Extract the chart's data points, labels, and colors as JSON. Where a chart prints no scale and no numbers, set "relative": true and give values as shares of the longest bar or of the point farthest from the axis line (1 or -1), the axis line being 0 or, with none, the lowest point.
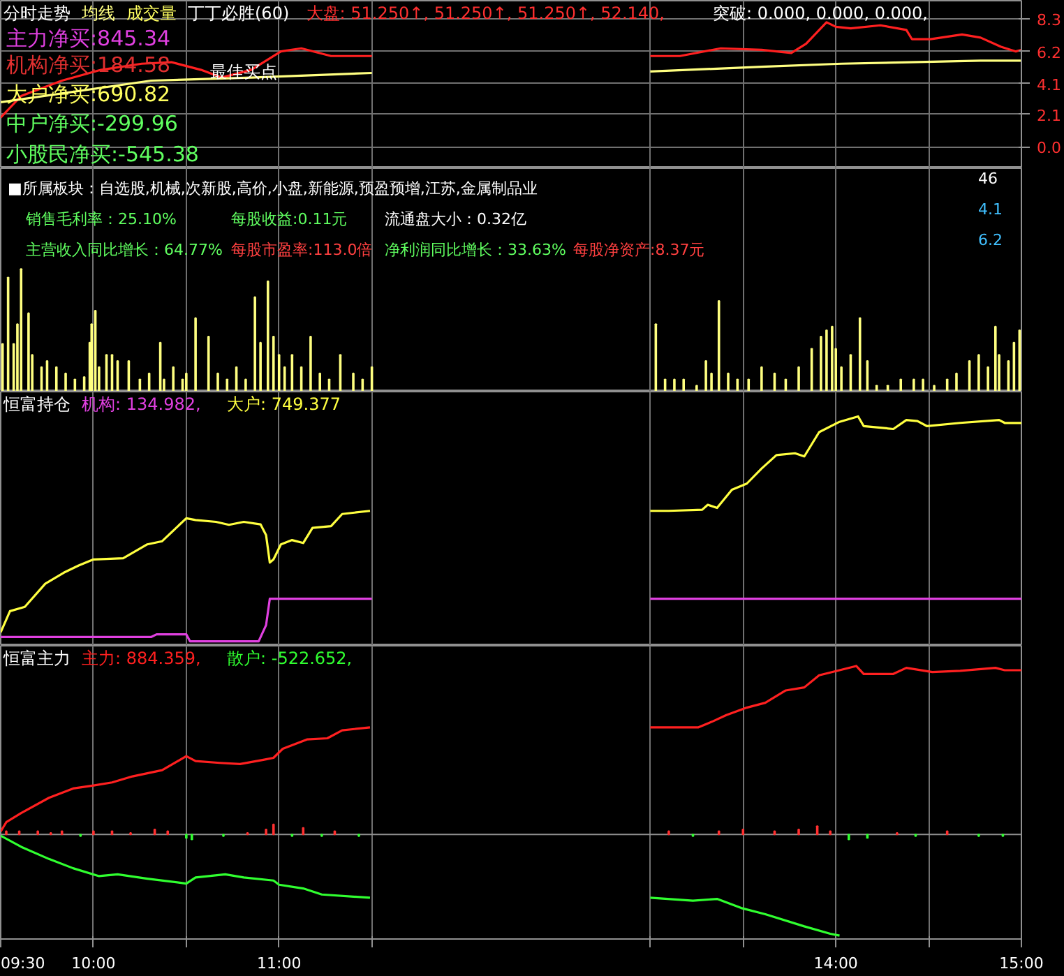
{
  "chart_data": [
    {
      "type": "line",
      "title": "分时走势",
      "xlim": [
        9.5,
        15
      ],
      "ylim": [
        -1.4,
        9.5
      ],
      "yticks": [
        {
          "value": 0,
          "label": "0.0"
        },
        2.1,
        4.1,
        6.2,
        8.3
      ],
      "grid": true,
      "tick_labels": "y",
      "xticks": [
        {
          "value": 9.5,
          "label": null
        },
        {
          "value": 10,
          "label": null
        },
        {
          "value": 10.5,
          "label": null
        },
        {
          "value": 11,
          "label": null
        },
        {
          "value": 11.5,
          "label": null
        },
        {
          "value": 13,
          "label": null
        },
        {
          "value": 13.5,
          "label": null
        },
        {
          "value": 14,
          "label": null
        },
        {
          "value": 14.5,
          "label": null
        },
        {
          "value": 15,
          "label": null
        }
      ],
      "annotations": [
        "成交量",
        "丁丁必胜(60)",
        "大盘: 51.250↑, 51.250↑, 51.250↑, 52.140,",
        "突破: 0.000, 0.000, 0.000,",
        "主力净买:845.34",
        "机构净买:184.58",
        "最佳买点",
        "大户净买:690.82",
        "中户净买:-299.96",
        "小股民净买:-545.38"
      ],
      "series": [
        {
          "color": "#ff2020",
          "x": [
            9.5,
            9.61,
            9.83,
            10.04,
            10.26,
            10.42,
            10.58,
            10.69,
            10.85,
            11.01,
            11.12,
            11.28,
            11.5,
            12.25,
            13,
            13.16,
            13.38,
            13.6,
            13.76,
            13.84,
            13.95,
            14,
            14.08,
            14.24,
            14.38,
            14.41,
            14.51,
            14.68,
            14.78,
            14.89,
            14.97,
            15
          ],
          "values": [
            1.9,
            3.3,
            4.3,
            5,
            5.4,
            5.5,
            5,
            4.5,
            5,
            6.2,
            6.4,
            5.9,
            5.9,
            null,
            5.9,
            5.9,
            6.4,
            6.3,
            6.1,
            6.7,
            8.1,
            7.8,
            7.7,
            7.9,
            7.6,
            7,
            7,
            7.3,
            7.1,
            6.5,
            6.2,
            6.3
          ]
        },
        {
          "name": "均线",
          "color": "#ffff80",
          "x": [
            9.5,
            10.31,
            10.85,
            11.5,
            12.25,
            13,
            13.6,
            14.03,
            14.78,
            15
          ],
          "values": [
            2.9,
            4.3,
            4.5,
            4.8,
            null,
            4.9,
            5.2,
            5.4,
            5.6,
            5.6
          ]
        }
      ]
    },
    {
      "type": "bar",
      "relative": true,
      "xlim": [
        9.5,
        15
      ],
      "grid": "x",
      "tick_labels": false,
      "xticks": [
        {
          "value": 9.5,
          "label": null
        },
        {
          "value": 10,
          "label": null
        },
        {
          "value": 10.5,
          "label": null
        },
        {
          "value": 11,
          "label": null
        },
        {
          "value": 11.5,
          "label": null
        },
        {
          "value": 13,
          "label": null
        },
        {
          "value": 13.5,
          "label": null
        },
        {
          "value": 14,
          "label": null
        },
        {
          "value": 14.5,
          "label": null
        },
        {
          "value": 15,
          "label": null
        }
      ],
      "annotations": [
        "■所属板块：自选股,机械,次新股,高价,小盘,新能源,预盈预增,江苏,金属制品业",
        "销售毛利率：25.10%",
        "每股收益:0.11元",
        "流通盘大小：0.32亿",
        "主营收入同比增长：64.77%",
        "每股市盈率:113.0倍",
        "净利润同比增长：33.63%",
        "每股净资产:8.37元",
        "46",
        "4.1",
        "6.2"
      ],
      "series": [
        {
          "color": "#ffff80",
          "x": [
            9.51,
            9.54,
            9.57,
            9.59,
            9.61,
            9.65,
            9.67,
            9.72,
            9.75,
            9.8,
            9.85,
            9.9,
            9.95,
            9.98,
            9.99,
            10.01,
            10.03,
            10.07,
            10.1,
            10.13,
            10.19,
            10.25,
            10.3,
            10.36,
            10.38,
            10.43,
            10.48,
            10.5,
            10.55,
            10.62,
            10.67,
            10.72,
            10.77,
            10.82,
            10.87,
            10.9,
            10.94,
            10.97,
            11,
            11.03,
            11.07,
            11.12,
            11.17,
            11.22,
            11.27,
            11.33,
            11.4,
            11.45,
            11.5,
            13.03,
            13.08,
            13.13,
            13.18,
            13.25,
            13.3,
            13.33,
            13.37,
            13.42,
            13.47,
            13.53,
            13.6,
            13.67,
            13.73,
            13.8,
            13.87,
            13.92,
            13.95,
            13.98,
            14,
            14.03,
            14.08,
            14.13,
            14.17,
            14.22,
            14.28,
            14.35,
            14.42,
            14.47,
            14.53,
            14.6,
            14.65,
            14.72,
            14.77,
            14.82,
            14.86,
            14.88,
            14.93,
            14.96,
            14.99
          ],
          "values": [
            0.39,
            0.93,
            0.39,
            0.55,
            1,
            0.64,
            0.3,
            0.2,
            0.25,
            0.2,
            0.15,
            0.1,
            0.12,
            0.4,
            0.55,
            0.66,
            0.2,
            0.3,
            0.3,
            0.25,
            0.25,
            0.1,
            0.15,
            0.4,
            0.1,
            0.2,
            0.1,
            0.15,
            0.6,
            0.45,
            0.15,
            0.1,
            0.2,
            0.1,
            0.77,
            0.4,
            0.9,
            0.45,
            0.3,
            0.2,
            0.3,
            0.2,
            0.45,
            0.15,
            0.1,
            0.3,
            0.15,
            0.1,
            0.2,
            0.55,
            0.1,
            0.1,
            0.1,
            0.05,
            0.25,
            0.15,
            0.74,
            0.15,
            0.1,
            0.1,
            0.2,
            0.15,
            0.1,
            0.2,
            0.35,
            0.45,
            0.5,
            0.53,
            0.35,
            0.2,
            0.3,
            0.6,
            0.25,
            0.05,
            0.05,
            0.1,
            0.1,
            0.1,
            0.05,
            0.1,
            0.15,
            0.25,
            0.3,
            0.2,
            0.53,
            0.3,
            0.25,
            0.4,
            0.5
          ]
        }
      ]
    },
    {
      "type": "line",
      "title": "恒富持仓",
      "relative": true,
      "xlim": [
        9.5,
        15
      ],
      "grid": "x",
      "tick_labels": false,
      "xticks": [
        {
          "value": 9.5,
          "label": null
        },
        {
          "value": 10,
          "label": null
        },
        {
          "value": 10.5,
          "label": null
        },
        {
          "value": 11,
          "label": null
        },
        {
          "value": 11.5,
          "label": null
        },
        {
          "value": 13,
          "label": null
        },
        {
          "value": 13.5,
          "label": null
        },
        {
          "value": 14,
          "label": null
        },
        {
          "value": 14.5,
          "label": null
        },
        {
          "value": 15,
          "label": null
        }
      ],
      "series": [
        {
          "name": "机构: 134.982,",
          "color": "#e040e0",
          "x": [
            9.5,
            10.31,
            10.34,
            10.5,
            10.52,
            10.89,
            10.93,
            10.95,
            11.5,
            12.25,
            13,
            15
          ],
          "values": [
            0.019,
            0.019,
            0.031,
            0.031,
            0,
            0,
            0.072,
            0.189,
            0.189,
            null,
            0.189,
            0.189
          ]
        },
        {
          "name": "大户: 749.377",
          "color": "#ffff40",
          "x": [
            9.5,
            9.55,
            9.63,
            9.74,
            9.84,
            9.92,
            10,
            10.16,
            10.29,
            10.37,
            10.5,
            10.55,
            10.66,
            10.73,
            10.81,
            10.9,
            10.93,
            10.95,
            10.97,
            11.01,
            11.07,
            11.13,
            11.18,
            11.28,
            11.34,
            11.49,
            12.25,
            13,
            13.1,
            13.28,
            13.31,
            13.36,
            13.44,
            13.52,
            13.6,
            13.68,
            13.78,
            13.83,
            13.91,
            14.02,
            14.12,
            14.15,
            14.31,
            14.38,
            14.44,
            14.49,
            14.67,
            14.88,
            14.91,
            15
          ],
          "values": [
            0.04,
            0.134,
            0.153,
            0.256,
            0.305,
            0.337,
            0.364,
            0.369,
            0.431,
            0.445,
            0.547,
            0.539,
            0.531,
            0.518,
            0.531,
            0.52,
            0.472,
            0.35,
            0.364,
            0.431,
            0.45,
            0.437,
            0.504,
            0.512,
            0.566,
            0.58,
            null,
            0.58,
            0.58,
            0.585,
            0.607,
            0.593,
            0.674,
            0.701,
            0.768,
            0.828,
            0.836,
            0.822,
            0.93,
            0.976,
            1,
            0.957,
            0.944,
            0.984,
            0.979,
            0.957,
            0.971,
            0.984,
            0.971,
            0.971
          ]
        }
      ]
    },
    {
      "type": "line",
      "title": "恒富主力",
      "relative": true,
      "xlim": [
        9.5,
        15
      ],
      "grid": "x",
      "tick_labels": "x",
      "xticks": [
        {
          "value": 9.5,
          "label": "09:30"
        },
        {
          "value": 10,
          "label": "10:00"
        },
        {
          "value": 10.5,
          "label": null
        },
        {
          "value": 11,
          "label": "11:00"
        },
        {
          "value": 11.5,
          "label": null
        },
        {
          "value": 13,
          "label": null
        },
        {
          "value": 13.5,
          "label": null
        },
        {
          "value": 14,
          "label": "14:00"
        },
        {
          "value": 14.5,
          "label": null
        },
        {
          "value": 15,
          "label": "15:00"
        }
      ],
      "series": [
        {
          "name": "主力: 884.359,",
          "color": "#ff2020",
          "x": [
            9.5,
            9.53,
            9.61,
            9.76,
            9.89,
            10,
            10.1,
            10.21,
            10.37,
            10.5,
            10.55,
            10.68,
            10.79,
            10.92,
            10.97,
            11.02,
            11.15,
            11.26,
            11.34,
            11.49,
            12.25,
            13,
            13.26,
            13.34,
            13.41,
            13.52,
            13.62,
            13.73,
            13.83,
            13.91,
            14.02,
            14.11,
            14.15,
            14.31,
            14.38,
            14.52,
            14.67,
            14.86,
            14.91,
            15
          ],
          "values": [
            0.018,
            0.073,
            0.127,
            0.218,
            0.273,
            0.291,
            0.309,
            0.345,
            0.382,
            0.465,
            0.436,
            0.425,
            0.418,
            0.444,
            0.455,
            0.509,
            0.564,
            0.571,
            0.618,
            0.636,
            null,
            0.636,
            0.636,
            0.673,
            0.709,
            0.753,
            0.782,
            0.855,
            0.873,
            0.945,
            0.975,
            1,
            0.953,
            0.953,
            0.989,
            0.964,
            0.971,
            0.989,
            0.975,
            0.975
          ]
        },
        {
          "name": "散户: -522.652,",
          "color": "#30ff30",
          "x": [
            9.5,
            9.61,
            9.76,
            9.89,
            10.03,
            10.13,
            10.29,
            10.5,
            10.55,
            10.71,
            10.81,
            10.97,
            11,
            11.13,
            11.23,
            11.49,
            12.25,
            13,
            13.23,
            13.36,
            13.49,
            13.62,
            13.83,
            13.97,
            14.02
          ],
          "values": [
            -0.007,
            -0.073,
            -0.145,
            -0.2,
            -0.247,
            -0.236,
            -0.262,
            -0.291,
            -0.255,
            -0.236,
            -0.255,
            -0.273,
            -0.298,
            -0.32,
            -0.356,
            -0.375,
            null,
            -0.375,
            -0.393,
            -0.382,
            -0.436,
            -0.473,
            -0.545,
            -0.589,
            -0.6
          ]
        },
        {
          "type": "bar",
          "x": [
            9.53,
            9.6,
            9.7,
            9.77,
            9.83,
            9.93,
            10,
            10.1,
            10.2,
            10.33,
            10.4,
            10.5,
            10.53,
            10.7,
            10.83,
            10.93,
            10.97,
            11.07,
            11.13,
            11.23,
            11.3,
            11.43,
            13.1,
            13.23,
            13.37,
            13.5,
            13.67,
            13.8,
            13.9,
            13.97,
            14.07,
            14.17,
            14.33,
            14.43,
            14.6,
            14.77,
            14.9
          ],
          "values": [
            0.02,
            0.02,
            0.02,
            0.01,
            0.02,
            -0.01,
            0.02,
            0.02,
            0.01,
            0.03,
            0.02,
            -0.02,
            -0.03,
            -0.01,
            0.01,
            0.03,
            0.06,
            -0.01,
            0.04,
            -0.01,
            0.02,
            -0.01,
            0.02,
            -0.01,
            0.02,
            0.03,
            0.02,
            0.03,
            0.05,
            0.02,
            -0.03,
            -0.02,
            0.01,
            -0.01,
            0.02,
            -0.01,
            -0.01
          ],
          "colors": [
            "#ff3030",
            "#ff3030",
            "#ff3030",
            "#ff3030",
            "#ff3030",
            "#30ff30",
            "#ff3030",
            "#ff3030",
            "#ff3030",
            "#ff3030",
            "#ff3030",
            "#30ff30",
            "#30ff30",
            "#30ff30",
            "#ff3030",
            "#ff3030",
            "#ff3030",
            "#30ff30",
            "#ff3030",
            "#30ff30",
            "#ff3030",
            "#30ff30",
            "#ff3030",
            "#30ff30",
            "#ff3030",
            "#ff3030",
            "#ff3030",
            "#ff3030",
            "#ff3030",
            "#ff3030",
            "#30ff30",
            "#30ff30",
            "#ff3030",
            "#30ff30",
            "#ff3030",
            "#30ff30",
            "#30ff30"
          ]
        }
      ]
    }
  ]
}
